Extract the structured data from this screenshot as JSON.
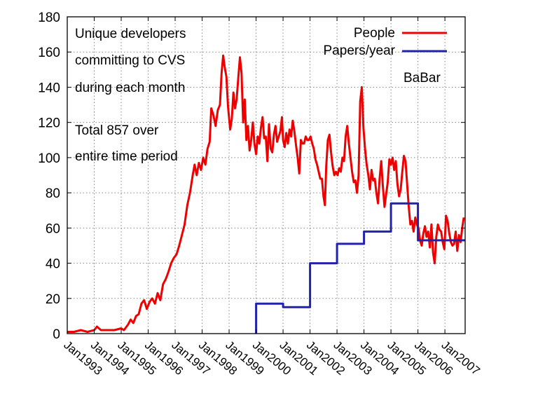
{
  "chart_data": {
    "type": "line",
    "title": "",
    "xlabel": "",
    "ylabel": "",
    "ylim": [
      0,
      180
    ],
    "yticks": [
      0,
      20,
      40,
      60,
      80,
      100,
      120,
      140,
      160,
      180
    ],
    "xlim": [
      1993.0,
      2007.75
    ],
    "xticks": [
      {
        "x": 1993,
        "label": "Jan1993"
      },
      {
        "x": 1994,
        "label": "Jan1994"
      },
      {
        "x": 1995,
        "label": "Jan1995"
      },
      {
        "x": 1996,
        "label": "Jan1996"
      },
      {
        "x": 1997,
        "label": "Jan1997"
      },
      {
        "x": 1998,
        "label": "Jan1998"
      },
      {
        "x": 1999,
        "label": "Jan1999"
      },
      {
        "x": 2000,
        "label": "Jan2000"
      },
      {
        "x": 2001,
        "label": "Jan2001"
      },
      {
        "x": 2002,
        "label": "Jan2002"
      },
      {
        "x": 2003,
        "label": "Jan2003"
      },
      {
        "x": 2004,
        "label": "Jan2004"
      },
      {
        "x": 2005,
        "label": "Jan2005"
      },
      {
        "x": 2006,
        "label": "Jan2006"
      },
      {
        "x": 2007,
        "label": "Jan2007"
      }
    ],
    "grid": "dotted",
    "legend_position": "top-right",
    "annotations": {
      "description": [
        "Unique developers",
        "committing to CVS",
        "during each month"
      ],
      "total": [
        "Total 857 over",
        "entire time period"
      ],
      "experiment": "BaBar"
    },
    "series": [
      {
        "name": "People",
        "color": "#ee0000",
        "style": "line",
        "points": [
          [
            1993.0,
            1
          ],
          [
            1993.25,
            1
          ],
          [
            1993.5,
            2
          ],
          [
            1993.75,
            1
          ],
          [
            1994.0,
            2
          ],
          [
            1994.1,
            4
          ],
          [
            1994.25,
            2
          ],
          [
            1994.5,
            2
          ],
          [
            1994.75,
            2
          ],
          [
            1995.0,
            3
          ],
          [
            1995.1,
            2
          ],
          [
            1995.25,
            5
          ],
          [
            1995.35,
            8
          ],
          [
            1995.45,
            6
          ],
          [
            1995.55,
            10
          ],
          [
            1995.65,
            11
          ],
          [
            1995.75,
            17
          ],
          [
            1995.85,
            19
          ],
          [
            1995.95,
            14
          ],
          [
            1996.05,
            18
          ],
          [
            1996.15,
            20
          ],
          [
            1996.25,
            17
          ],
          [
            1996.35,
            23
          ],
          [
            1996.45,
            19
          ],
          [
            1996.55,
            28
          ],
          [
            1996.65,
            31
          ],
          [
            1996.75,
            35
          ],
          [
            1996.85,
            40
          ],
          [
            1996.95,
            43
          ],
          [
            1997.05,
            45
          ],
          [
            1997.15,
            50
          ],
          [
            1997.25,
            56
          ],
          [
            1997.35,
            62
          ],
          [
            1997.45,
            73
          ],
          [
            1997.55,
            80
          ],
          [
            1997.65,
            90
          ],
          [
            1997.72,
            96
          ],
          [
            1997.8,
            90
          ],
          [
            1997.88,
            97
          ],
          [
            1997.96,
            93
          ],
          [
            1998.04,
            100
          ],
          [
            1998.12,
            96
          ],
          [
            1998.2,
            105
          ],
          [
            1998.28,
            109
          ],
          [
            1998.34,
            128
          ],
          [
            1998.42,
            124
          ],
          [
            1998.5,
            118
          ],
          [
            1998.58,
            127
          ],
          [
            1998.66,
            130
          ],
          [
            1998.72,
            148
          ],
          [
            1998.78,
            158
          ],
          [
            1998.84,
            151
          ],
          [
            1998.9,
            146
          ],
          [
            1998.96,
            129
          ],
          [
            1999.04,
            116
          ],
          [
            1999.1,
            122
          ],
          [
            1999.16,
            137
          ],
          [
            1999.22,
            128
          ],
          [
            1999.28,
            133
          ],
          [
            1999.34,
            145
          ],
          [
            1999.4,
            157
          ],
          [
            1999.46,
            148
          ],
          [
            1999.52,
            120
          ],
          [
            1999.58,
            133
          ],
          [
            1999.64,
            110
          ],
          [
            1999.7,
            118
          ],
          [
            1999.76,
            104
          ],
          [
            1999.82,
            110
          ],
          [
            1999.88,
            120
          ],
          [
            1999.94,
            108
          ],
          [
            2000.0,
            102
          ],
          [
            2000.06,
            112
          ],
          [
            2000.12,
            108
          ],
          [
            2000.18,
            117
          ],
          [
            2000.24,
            123
          ],
          [
            2000.3,
            111
          ],
          [
            2000.36,
            112
          ],
          [
            2000.42,
            98
          ],
          [
            2000.48,
            119
          ],
          [
            2000.54,
            105
          ],
          [
            2000.6,
            103
          ],
          [
            2000.66,
            113
          ],
          [
            2000.72,
            118
          ],
          [
            2000.78,
            109
          ],
          [
            2000.84,
            112
          ],
          [
            2000.9,
            115
          ],
          [
            2000.96,
            123
          ],
          [
            2001.0,
            110
          ],
          [
            2001.06,
            106
          ],
          [
            2001.12,
            114
          ],
          [
            2001.18,
            108
          ],
          [
            2001.24,
            116
          ],
          [
            2001.3,
            112
          ],
          [
            2001.36,
            121
          ],
          [
            2001.42,
            115
          ],
          [
            2001.48,
            107
          ],
          [
            2001.54,
            100
          ],
          [
            2001.6,
            91
          ],
          [
            2001.66,
            110
          ],
          [
            2001.72,
            108
          ],
          [
            2001.78,
            108
          ],
          [
            2001.84,
            112
          ],
          [
            2001.9,
            110
          ],
          [
            2001.96,
            110
          ],
          [
            2002.02,
            112
          ],
          [
            2002.08,
            108
          ],
          [
            2002.14,
            105
          ],
          [
            2002.2,
            99
          ],
          [
            2002.26,
            96
          ],
          [
            2002.32,
            92
          ],
          [
            2002.38,
            88
          ],
          [
            2002.44,
            88
          ],
          [
            2002.5,
            78
          ],
          [
            2002.55,
            73
          ],
          [
            2002.6,
            95
          ],
          [
            2002.66,
            110
          ],
          [
            2002.72,
            113
          ],
          [
            2002.78,
            103
          ],
          [
            2002.84,
            95
          ],
          [
            2002.9,
            90
          ],
          [
            2002.96,
            92
          ],
          [
            2003.02,
            90
          ],
          [
            2003.08,
            94
          ],
          [
            2003.14,
            92
          ],
          [
            2003.2,
            100
          ],
          [
            2003.26,
            98
          ],
          [
            2003.32,
            112
          ],
          [
            2003.38,
            118
          ],
          [
            2003.44,
            108
          ],
          [
            2003.5,
            100
          ],
          [
            2003.56,
            92
          ],
          [
            2003.62,
            86
          ],
          [
            2003.68,
            87
          ],
          [
            2003.74,
            80
          ],
          [
            2003.8,
            90
          ],
          [
            2003.86,
            132
          ],
          [
            2003.92,
            140
          ],
          [
            2003.98,
            117
          ],
          [
            2004.04,
            105
          ],
          [
            2004.1,
            96
          ],
          [
            2004.16,
            90
          ],
          [
            2004.22,
            82
          ],
          [
            2004.28,
            93
          ],
          [
            2004.34,
            87
          ],
          [
            2004.4,
            88
          ],
          [
            2004.46,
            80
          ],
          [
            2004.52,
            74
          ],
          [
            2004.58,
            88
          ],
          [
            2004.64,
            98
          ],
          [
            2004.7,
            84
          ],
          [
            2004.76,
            72
          ],
          [
            2004.82,
            79
          ],
          [
            2004.88,
            86
          ],
          [
            2004.94,
            99
          ],
          [
            2005.0,
            96
          ],
          [
            2005.06,
            100
          ],
          [
            2005.12,
            93
          ],
          [
            2005.18,
            98
          ],
          [
            2005.24,
            85
          ],
          [
            2005.3,
            78
          ],
          [
            2005.36,
            82
          ],
          [
            2005.42,
            92
          ],
          [
            2005.48,
            101
          ],
          [
            2005.54,
            98
          ],
          [
            2005.6,
            85
          ],
          [
            2005.66,
            72
          ],
          [
            2005.72,
            62
          ],
          [
            2005.78,
            64
          ],
          [
            2005.84,
            58
          ],
          [
            2005.9,
            66
          ],
          [
            2005.96,
            62
          ],
          [
            2006.02,
            60
          ],
          [
            2006.08,
            53
          ],
          [
            2006.14,
            50
          ],
          [
            2006.2,
            57
          ],
          [
            2006.26,
            61
          ],
          [
            2006.32,
            55
          ],
          [
            2006.38,
            58
          ],
          [
            2006.44,
            49
          ],
          [
            2006.5,
            62
          ],
          [
            2006.56,
            46
          ],
          [
            2006.62,
            40
          ],
          [
            2006.68,
            55
          ],
          [
            2006.74,
            62
          ],
          [
            2006.8,
            59
          ],
          [
            2006.86,
            58
          ],
          [
            2006.92,
            52
          ],
          [
            2006.98,
            48
          ],
          [
            2007.04,
            67
          ],
          [
            2007.1,
            64
          ],
          [
            2007.16,
            57
          ],
          [
            2007.22,
            52
          ],
          [
            2007.28,
            50
          ],
          [
            2007.34,
            51
          ],
          [
            2007.4,
            58
          ],
          [
            2007.46,
            47
          ],
          [
            2007.52,
            56
          ],
          [
            2007.58,
            52
          ],
          [
            2007.64,
            60
          ],
          [
            2007.7,
            66
          ]
        ]
      },
      {
        "name": "Papers/year",
        "color": "#2222aa",
        "style": "step",
        "points": [
          [
            2000.0,
            0
          ],
          [
            2000.0,
            17
          ],
          [
            2001.0,
            17
          ],
          [
            2001.0,
            15
          ],
          [
            2002.0,
            15
          ],
          [
            2002.0,
            40
          ],
          [
            2003.0,
            40
          ],
          [
            2003.0,
            51
          ],
          [
            2004.0,
            51
          ],
          [
            2004.0,
            58
          ],
          [
            2005.0,
            58
          ],
          [
            2005.0,
            74
          ],
          [
            2006.0,
            74
          ],
          [
            2006.0,
            53
          ],
          [
            2007.75,
            53
          ]
        ]
      }
    ]
  }
}
